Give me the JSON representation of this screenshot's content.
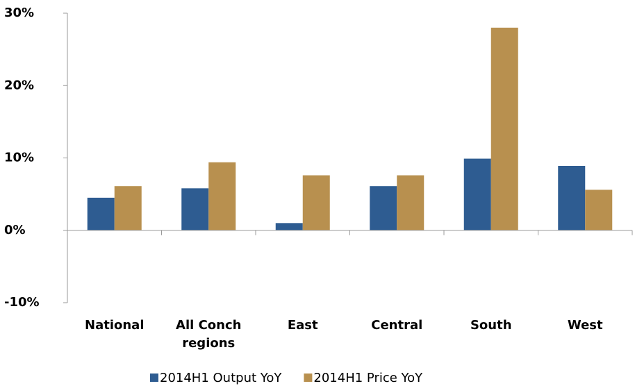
{
  "chart_data": {
    "type": "bar",
    "categories": [
      "National",
      "All Conch regions",
      "East",
      "Central",
      "South",
      "West"
    ],
    "series": [
      {
        "name": "2014H1 Output YoY",
        "color": "#2e5c91",
        "values": [
          4.5,
          5.8,
          1.0,
          6.1,
          9.9,
          8.9
        ]
      },
      {
        "name": "2014H1 Price YoY",
        "color": "#b8904f",
        "values": [
          6.1,
          9.4,
          7.6,
          7.6,
          28,
          5.6
        ]
      }
    ],
    "ylim": [
      -10,
      30
    ],
    "yticks": [
      {
        "value": -10,
        "label": "-10%"
      },
      {
        "value": 0,
        "label": "0%"
      },
      {
        "value": 10,
        "label": "10%"
      },
      {
        "value": 20,
        "label": "20%"
      },
      {
        "value": 30,
        "label": "30%"
      }
    ],
    "legend": "bottom"
  }
}
